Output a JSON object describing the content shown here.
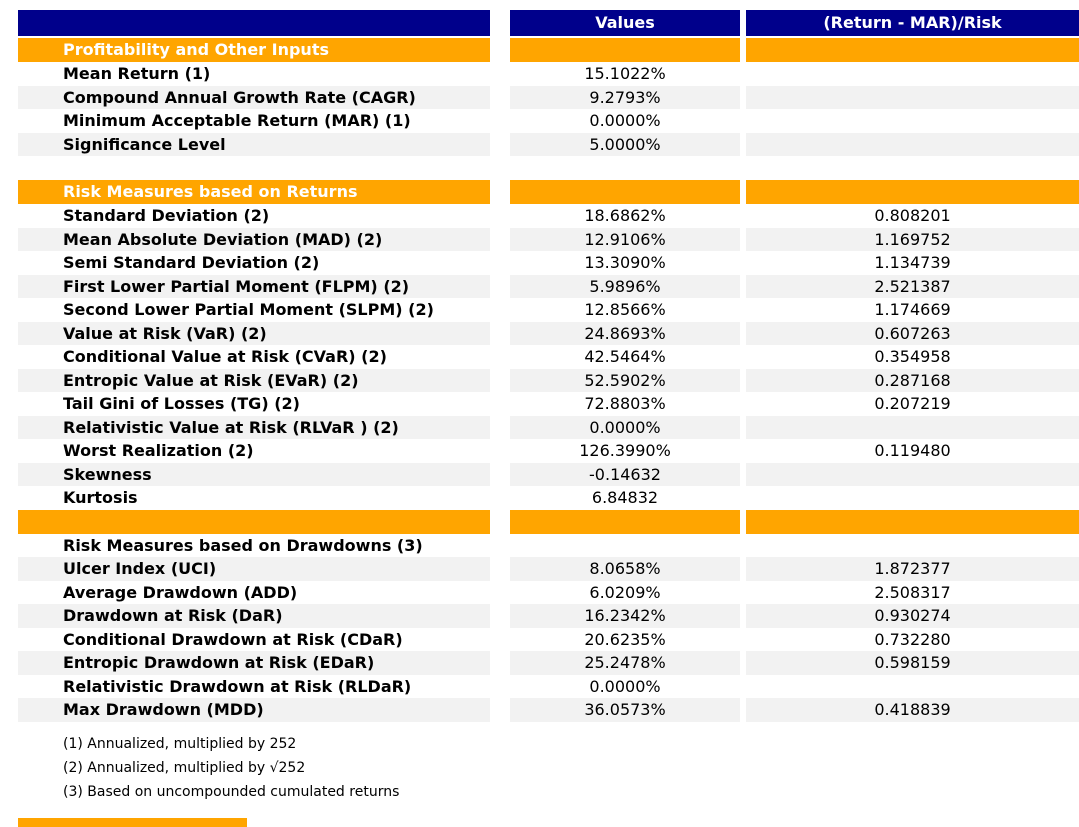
{
  "colors": {
    "header_bg": "#00008B",
    "header_text": "#FFFFFF",
    "section_bg": "#FFA500",
    "shade_bg": "#F2F2F2"
  },
  "chart_data": {
    "type": "table",
    "columns": [
      "",
      "Values",
      "(Return - MAR)/Risk"
    ],
    "rows": [
      {
        "type": "section",
        "label": "Profitability and Other Inputs"
      },
      {
        "type": "data",
        "label": "Mean Return (1)",
        "value": "15.1022%",
        "ratio": "",
        "shade": false
      },
      {
        "type": "data",
        "label": "Compound Annual Growth Rate (CAGR)",
        "value": "9.2793%",
        "ratio": "",
        "shade": true
      },
      {
        "type": "data",
        "label": "Minimum Acceptable Return (MAR) (1)",
        "value": "0.0000%",
        "ratio": "",
        "shade": false
      },
      {
        "type": "data",
        "label": "Significance Level",
        "value": "5.0000%",
        "ratio": "",
        "shade": true
      },
      {
        "type": "spacer"
      },
      {
        "type": "section",
        "label": "Risk Measures based on Returns"
      },
      {
        "type": "data",
        "label": "Standard Deviation (2)",
        "value": "18.6862%",
        "ratio": "0.808201",
        "shade": false
      },
      {
        "type": "data",
        "label": "Mean Absolute Deviation (MAD) (2)",
        "value": "12.9106%",
        "ratio": "1.169752",
        "shade": true
      },
      {
        "type": "data",
        "label": "Semi Standard Deviation (2)",
        "value": "13.3090%",
        "ratio": "1.134739",
        "shade": false
      },
      {
        "type": "data",
        "label": "First Lower Partial Moment (FLPM) (2)",
        "value": "5.9896%",
        "ratio": "2.521387",
        "shade": true
      },
      {
        "type": "data",
        "label": "Second Lower Partial Moment (SLPM) (2)",
        "value": "12.8566%",
        "ratio": "1.174669",
        "shade": false
      },
      {
        "type": "data",
        "label": "Value at Risk (VaR) (2)",
        "value": "24.8693%",
        "ratio": "0.607263",
        "shade": true
      },
      {
        "type": "data",
        "label": "Conditional Value at Risk (CVaR) (2)",
        "value": "42.5464%",
        "ratio": "0.354958",
        "shade": false
      },
      {
        "type": "data",
        "label": "Entropic Value at Risk (EVaR) (2)",
        "value": "52.5902%",
        "ratio": "0.287168",
        "shade": true
      },
      {
        "type": "data",
        "label": "Tail Gini of Losses (TG) (2)",
        "value": "72.8803%",
        "ratio": "0.207219",
        "shade": false
      },
      {
        "type": "data",
        "label": "Relativistic Value at Risk (RLVaR ) (2)",
        "value": "0.0000%",
        "ratio": "",
        "shade": true
      },
      {
        "type": "data",
        "label": "Worst Realization (2)",
        "value": "126.3990%",
        "ratio": "0.119480",
        "shade": false
      },
      {
        "type": "data",
        "label": "Skewness",
        "value": "-0.14632",
        "ratio": "",
        "shade": true
      },
      {
        "type": "data",
        "label": "Kurtosis",
        "value": "6.84832",
        "ratio": "",
        "shade": false
      },
      {
        "type": "section",
        "label": ""
      },
      {
        "type": "subheader",
        "label": "Risk Measures based on Drawdowns (3)"
      },
      {
        "type": "data",
        "label": "Ulcer Index (UCI)",
        "value": "8.0658%",
        "ratio": "1.872377",
        "shade": true
      },
      {
        "type": "data",
        "label": "Average Drawdown (ADD)",
        "value": "6.0209%",
        "ratio": "2.508317",
        "shade": false
      },
      {
        "type": "data",
        "label": "Drawdown at Risk (DaR)",
        "value": "16.2342%",
        "ratio": "0.930274",
        "shade": true
      },
      {
        "type": "data",
        "label": "Conditional Drawdown at Risk (CDaR)",
        "value": "20.6235%",
        "ratio": "0.732280",
        "shade": false
      },
      {
        "type": "data",
        "label": "Entropic Drawdown at Risk (EDaR)",
        "value": "25.2478%",
        "ratio": "0.598159",
        "shade": true
      },
      {
        "type": "data",
        "label": "Relativistic Drawdown at Risk (RLDaR)",
        "value": "0.0000%",
        "ratio": "",
        "shade": false
      },
      {
        "type": "data",
        "label": "Max Drawdown (MDD)",
        "value": "36.0573%",
        "ratio": "0.418839",
        "shade": true
      }
    ],
    "footnotes": [
      "(1) Annualized, multiplied by 252",
      "(2) Annualized, multiplied by √252",
      "(3) Based on uncompounded cumulated returns"
    ]
  }
}
